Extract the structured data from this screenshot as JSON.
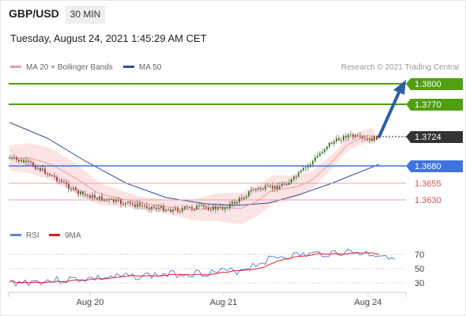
{
  "header": {
    "pair": "GBP/USD",
    "timeframe": "30 MIN",
    "datetime": "Tuesday, August 24, 2021 1:45:29 AM CET"
  },
  "legend": {
    "ma20": "MA 20 + Bollinger Bands",
    "ma50": "MA 50",
    "credit": "Research © 2021 Trading Central",
    "rsi": "RSI",
    "ma9": "9MA"
  },
  "colors": {
    "resistance": "#4f9f10",
    "support": "#3f74e0",
    "pivot": "#333333",
    "target_red": "#e05050",
    "ma20": "#ef9a9a",
    "ma50": "#2e4f9e",
    "bollinger_fill": "#fde4e4",
    "arrow": "#2e5ea5",
    "rsi": "#5b87db",
    "rsi_ma": "#e02020"
  },
  "price_levels": [
    {
      "label": "1.3800",
      "kind": "resistance"
    },
    {
      "label": "1.3770",
      "kind": "resistance"
    },
    {
      "label": "1.3724",
      "kind": "pivot"
    },
    {
      "label": "1.3680",
      "kind": "support"
    },
    {
      "label": "1.3655",
      "kind": "target"
    },
    {
      "label": "1.3630",
      "kind": "target"
    }
  ],
  "rsi_scale": [
    "70",
    "50",
    "30"
  ],
  "x_axis": [
    "Aug 20",
    "Aug 21",
    "Aug 24"
  ]
}
